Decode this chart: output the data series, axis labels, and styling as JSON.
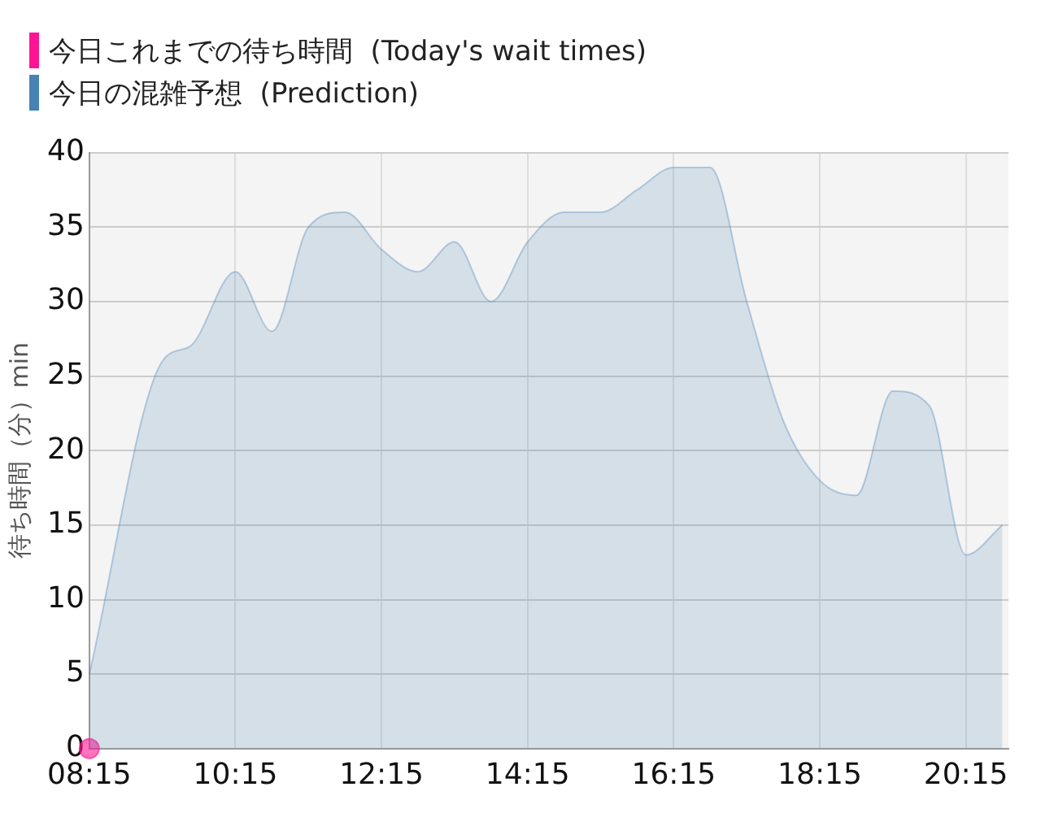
{
  "chart_data": {
    "type": "area",
    "ylabel": "待ち時間（分）min",
    "legend": "top left",
    "grid": true,
    "xlim": [
      8.25,
      20.833
    ],
    "xticks": [
      {
        "value": 8.25,
        "label": "08:15"
      },
      {
        "value": 10.25,
        "label": "10:15"
      },
      {
        "value": 12.25,
        "label": "12:15"
      },
      {
        "value": 14.25,
        "label": "14:15"
      },
      {
        "value": 16.25,
        "label": "16:15"
      },
      {
        "value": 18.25,
        "label": "18:15"
      },
      {
        "value": 20.25,
        "label": "20:15"
      }
    ],
    "ylim": [
      0,
      40
    ],
    "yticks": [
      0,
      5,
      10,
      15,
      20,
      25,
      30,
      35,
      40
    ],
    "series": [
      {
        "name": "今日これまでの待ち時間  (Today's wait times)",
        "type": "scatter",
        "marker": "circle",
        "color": "#ff1493",
        "x": [
          8.25
        ],
        "values": [
          0
        ]
      },
      {
        "name": "今日の混雑予想  (Prediction)",
        "type": "area",
        "color": "#4682b4",
        "x": [
          8.25,
          9.25,
          9.63,
          10.25,
          10.75,
          11.25,
          11.75,
          12.25,
          12.75,
          13.25,
          13.75,
          14.25,
          14.75,
          15.25,
          15.75,
          16.25,
          16.75,
          17.25,
          17.75,
          18.25,
          18.75,
          19.25,
          19.75,
          20.25,
          20.75
        ],
        "values": [
          5,
          26,
          27,
          32,
          28,
          35,
          36,
          33.5,
          32,
          34,
          30,
          34,
          36,
          36,
          37.5,
          39,
          39,
          30,
          22,
          18,
          17,
          24,
          23,
          13,
          15
        ]
      }
    ]
  }
}
